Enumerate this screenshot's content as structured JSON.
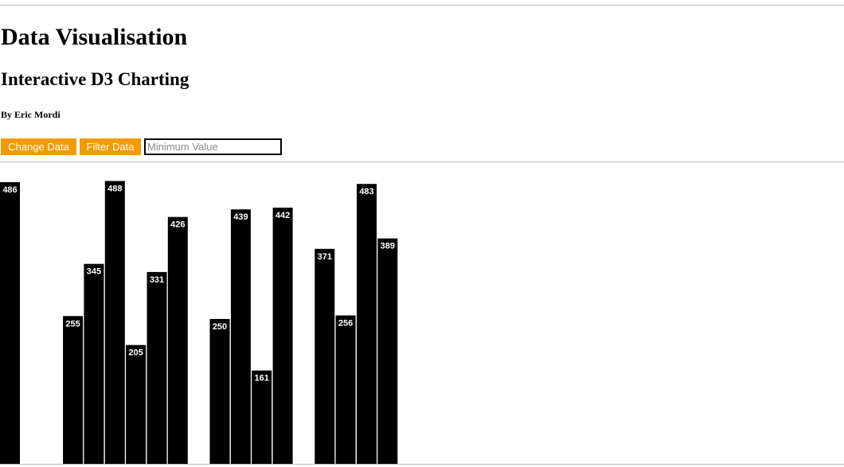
{
  "page": {
    "title": "Data Visualisation",
    "subtitle": "Interactive D3 Charting",
    "byline": "By Eric Mordi"
  },
  "controls": {
    "change_label": "Change Data",
    "filter_label": "Filter Data",
    "min_placeholder": "Minimum Value",
    "min_value": "",
    "accent_color": "#f49a00"
  },
  "chart_data": {
    "type": "bar",
    "bar_color": "#000000",
    "label_color": "#ffffff",
    "ylim": [
      0,
      500
    ],
    "values": [
      486,
      null,
      null,
      255,
      345,
      488,
      205,
      331,
      426,
      null,
      250,
      439,
      161,
      442,
      null,
      371,
      256,
      483,
      389
    ],
    "labels": [
      "486",
      "",
      "",
      "255",
      "345",
      "488",
      "205",
      "331",
      "426",
      "",
      "250",
      "439",
      "161",
      "442",
      "",
      "371",
      "256",
      "483",
      "389"
    ]
  }
}
